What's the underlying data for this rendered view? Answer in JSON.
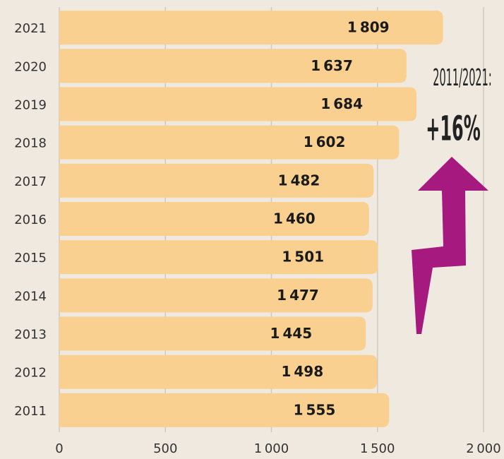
{
  "chart_data": {
    "type": "hbar",
    "categories": [
      "2021",
      "2020",
      "2019",
      "2018",
      "2017",
      "2016",
      "2015",
      "2014",
      "2013",
      "2012",
      "2011"
    ],
    "values": [
      1809,
      1637,
      1684,
      1602,
      1482,
      1460,
      1501,
      1477,
      1445,
      1498,
      1555
    ],
    "value_labels": [
      "1 809",
      "1 637",
      "1 684",
      "1 602",
      "1 482",
      "1 460",
      "1 501",
      "1 477",
      "1 445",
      "1 498",
      "1 555"
    ],
    "color": "#f9d08f",
    "xlim": [
      0,
      2000
    ],
    "xticks": [
      0,
      500,
      {
        "value": 1000,
        "label": "1 000"
      },
      {
        "value": 1500,
        "label": "1 500"
      },
      {
        "value": 2000,
        "label": "2 000"
      }
    ],
    "grid": true,
    "annotations": [
      "2011/2021:",
      "+16%"
    ]
  }
}
